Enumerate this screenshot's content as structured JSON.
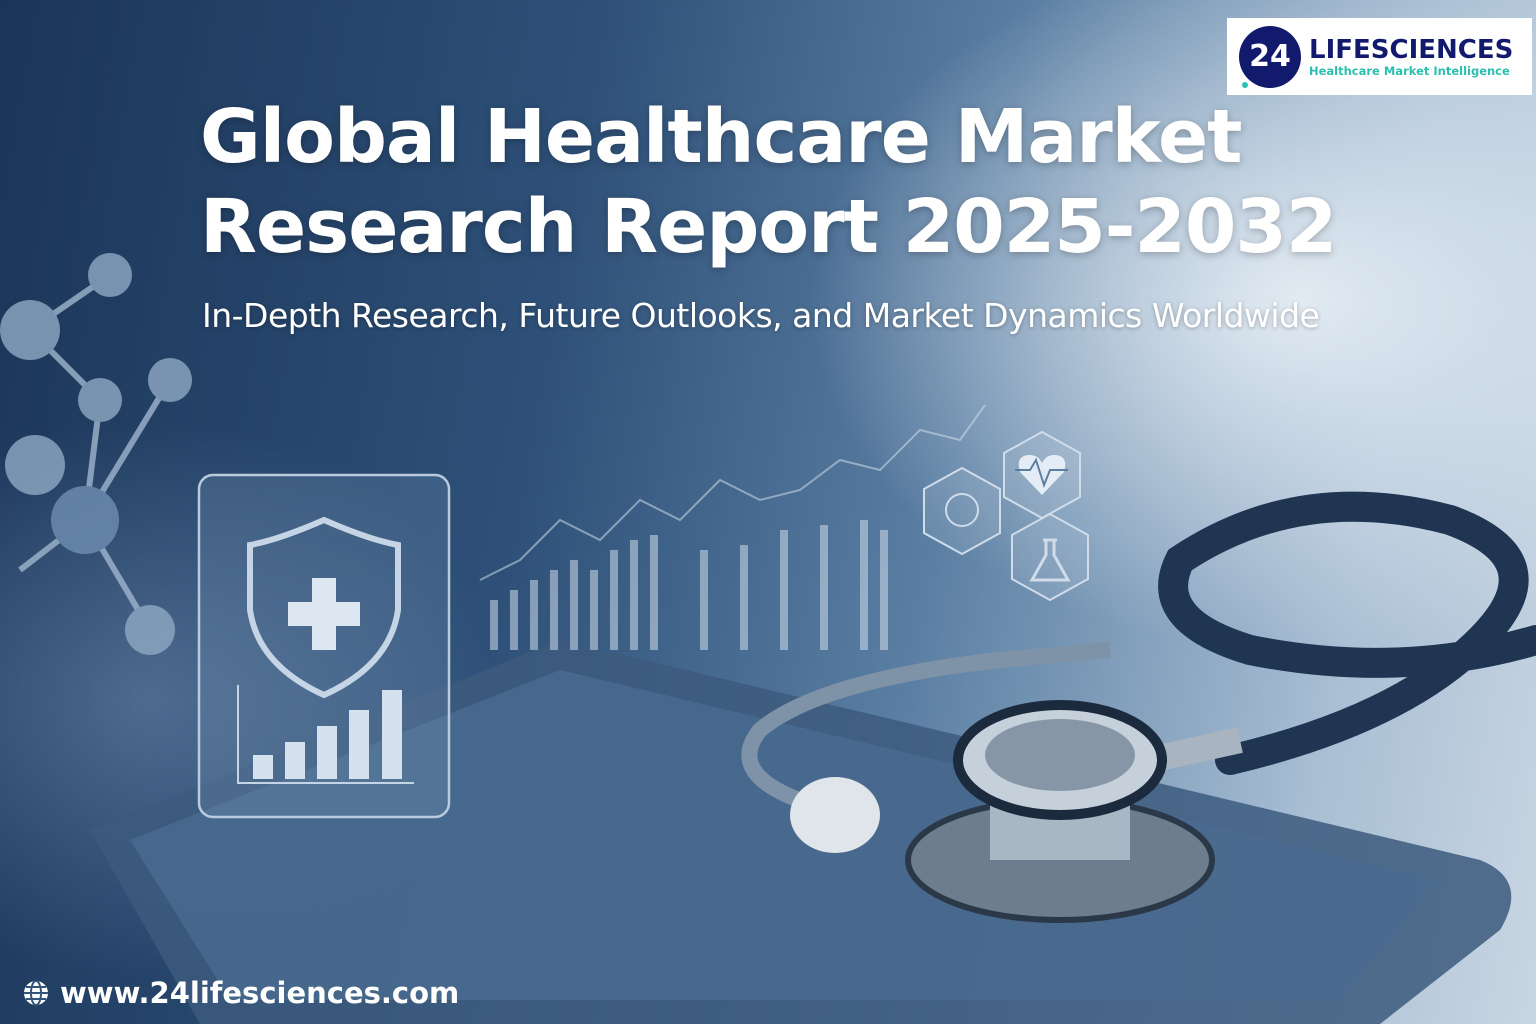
{
  "header": {
    "title_line1": "Global Healthcare Market",
    "title_line2": "Research Report 2025-2032",
    "subtitle": "In-Depth Research, Future Outlooks, and Market Dynamics Worldwide"
  },
  "logo": {
    "badge": "24",
    "name": "LIFESCIENCES",
    "tagline": "Healthcare Market Intelligence",
    "colors": {
      "navy": "#121a6e",
      "teal": "#2bbfb0"
    }
  },
  "footer": {
    "icon": "globe-icon",
    "website": "www.24lifesciences.com"
  },
  "illustration": {
    "icons": [
      "shield-plus-icon",
      "bar-chart-icon",
      "heartbeat-icon",
      "dna-icon",
      "flask-icon",
      "molecule-icon",
      "stethoscope-icon",
      "tablet-icon"
    ]
  }
}
